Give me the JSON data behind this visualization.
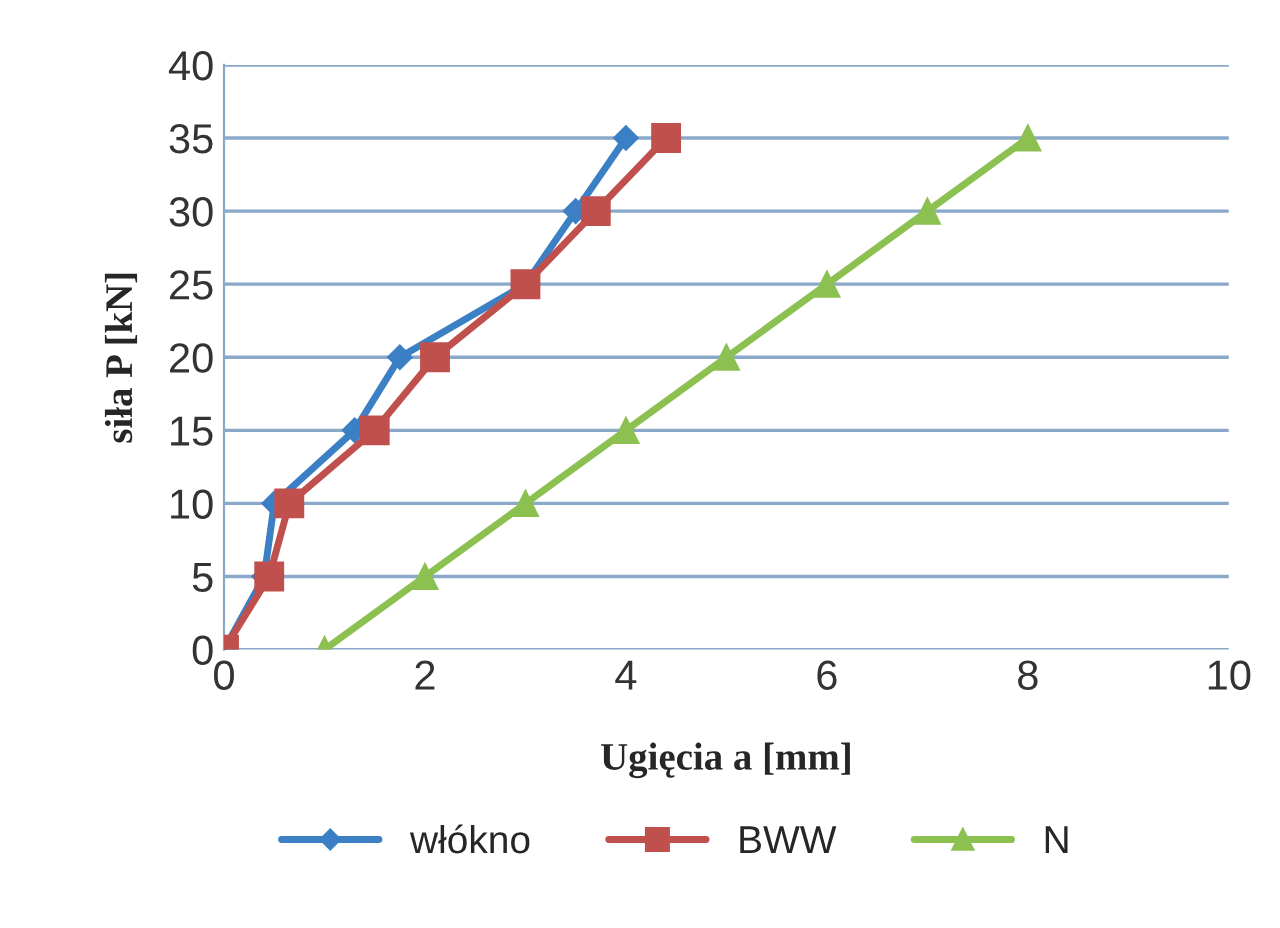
{
  "chart_data": {
    "type": "line",
    "xlabel": "Ugięcia a [mm]",
    "ylabel": "siła P [kN]",
    "series": [
      {
        "name": "włókno",
        "color": "#3b7fc4",
        "marker": "diamond",
        "x": [
          0,
          0.4,
          0.5,
          1.3,
          1.75,
          3,
          3.5,
          4
        ],
        "values": [
          0,
          5,
          10,
          15,
          20,
          25,
          30,
          35
        ]
      },
      {
        "name": "BWW",
        "color": "#c0504d",
        "marker": "square",
        "x": [
          0,
          0.45,
          0.65,
          1.5,
          2.1,
          3,
          3.7,
          4.4
        ],
        "values": [
          0,
          5,
          10,
          15,
          20,
          25,
          30,
          35
        ]
      },
      {
        "name": "N",
        "color": "#8cc152",
        "marker": "triangle",
        "x": [
          1,
          2,
          3,
          4,
          5,
          6,
          7,
          8
        ],
        "values": [
          0,
          5,
          10,
          15,
          20,
          25,
          30,
          35
        ]
      }
    ],
    "xlim": [
      0,
      10
    ],
    "xticks": [
      0,
      2,
      4,
      6,
      8,
      10
    ],
    "ylim": [
      0,
      40
    ],
    "yticks": [
      0,
      5,
      10,
      15,
      20,
      25,
      30,
      35,
      40
    ],
    "grid": "y",
    "legend": "bottom",
    "line_style": "solid"
  }
}
